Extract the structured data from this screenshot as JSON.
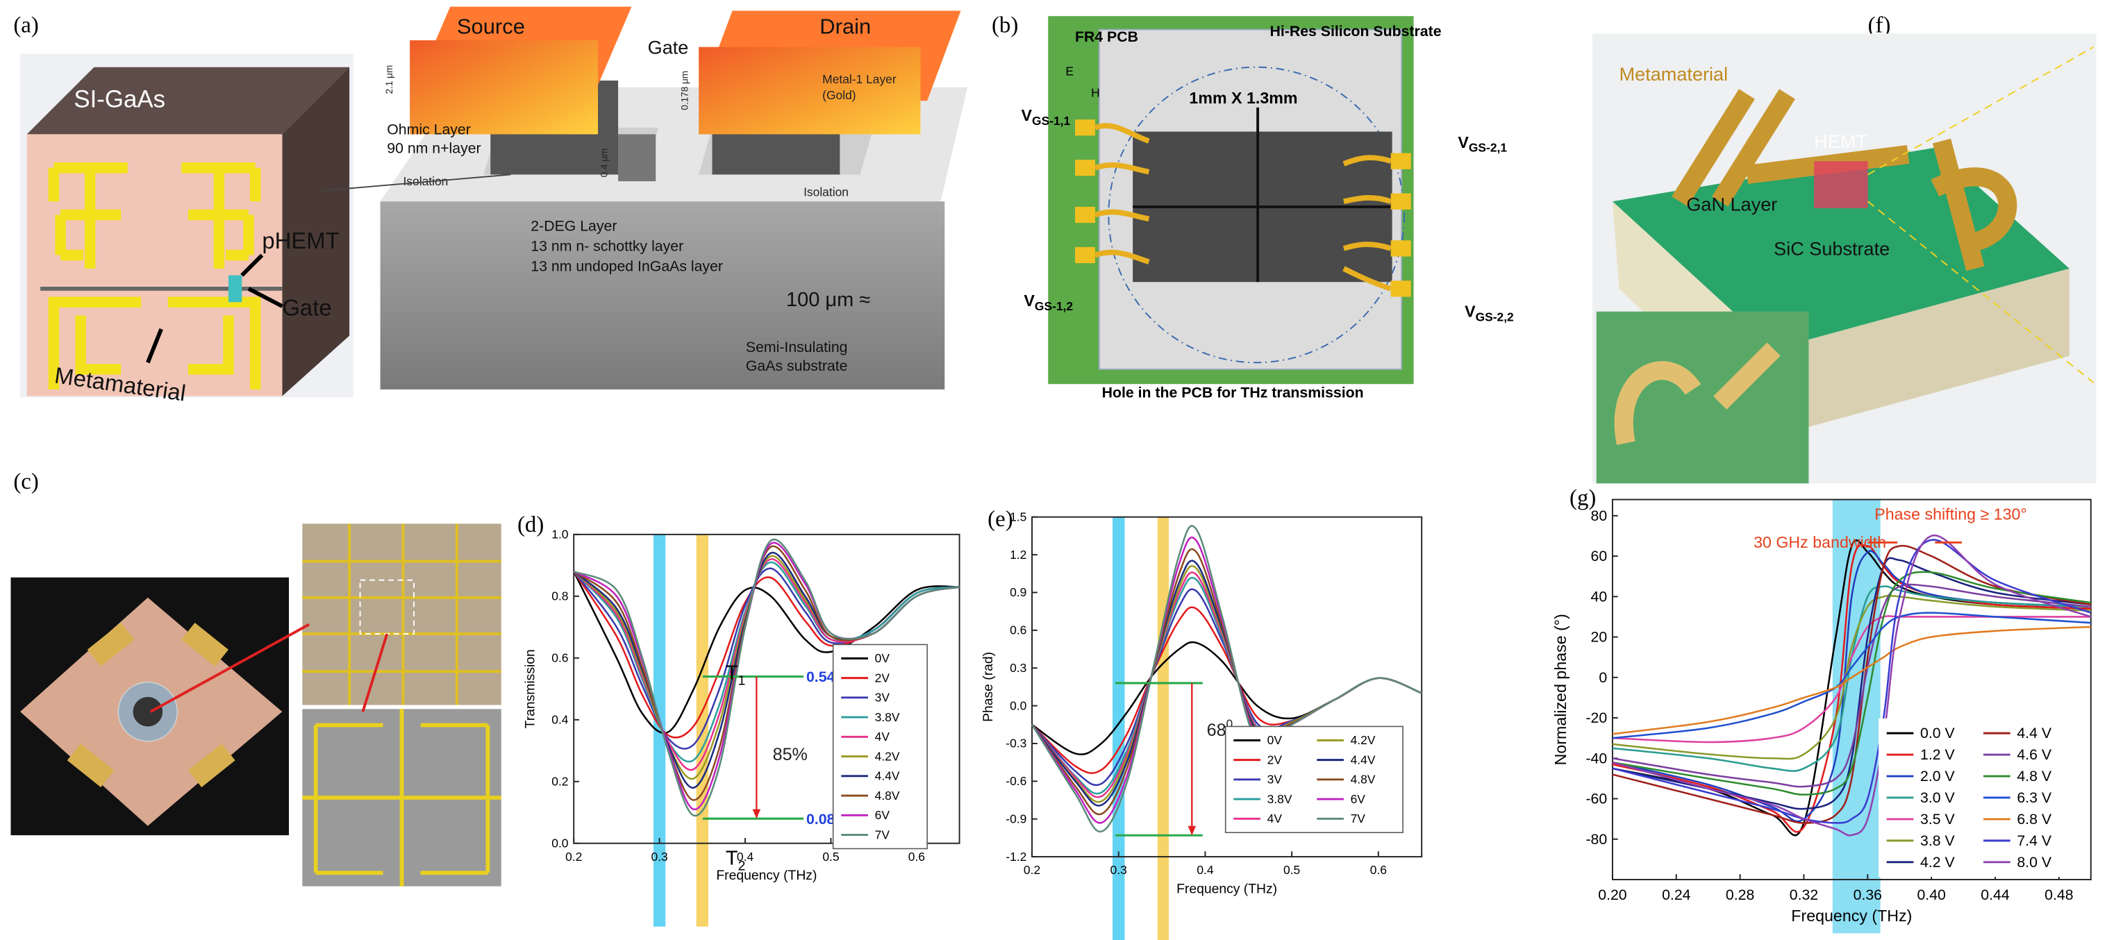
{
  "panels": {
    "a": {
      "label": "(a)",
      "chip": {
        "substrate": "SI-GaAs",
        "device": "pHEMT",
        "gate": "Gate",
        "metamaterial": "Metamaterial"
      },
      "cross_section": {
        "source": "Source",
        "drain": "Drain",
        "gate": "Gate",
        "metal_layer": [
          "Metal-1 Layer",
          "(Gold)"
        ],
        "ohmic_layer": [
          "Ohmic Layer",
          "90 nm n+layer"
        ],
        "isolation_left": "Isolation",
        "isolation_right": "Isolation",
        "layers": [
          "2-DEG Layer",
          "13 nm n- schottky layer",
          "13 nm undoped InGaAs layer"
        ],
        "thickness": "100 μm ≈",
        "substrate": [
          "Semi-Insulating",
          "GaAs substrate"
        ],
        "dims": [
          "2.1 μm",
          "0.178 μm",
          "0.4 μm"
        ]
      }
    },
    "b": {
      "label": "(b)",
      "pcb": "FR4 PCB",
      "substrate": "Hi-Res Silicon Substrate",
      "size": "1mm X 1.3mm",
      "e": "E",
      "h": "H",
      "hole": "Hole in the PCB for THz transmission",
      "bias": [
        {
          "v": "V",
          "sub": "GS-1,1"
        },
        {
          "v": "V",
          "sub": "GS-1,2"
        },
        {
          "v": "V",
          "sub": "GS-2,1"
        },
        {
          "v": "V",
          "sub": "GS-2,2"
        }
      ]
    },
    "c": {
      "label": "(c)"
    },
    "f": {
      "label": "(f)",
      "metamaterial": "Metamaterial",
      "hemt": "HEMT",
      "gan": "GaN Layer",
      "sic": "SiC Substrate"
    }
  },
  "chart_data": [
    {
      "type": "line",
      "panel_label": "(d)",
      "x_label": "Frequency (THz)",
      "y_label": "Transmission",
      "xlim": [
        0.2,
        0.65
      ],
      "xticks": [
        0.2,
        0.3,
        0.4,
        0.5,
        0.6
      ],
      "ylim": [
        0,
        1
      ],
      "yticks": [
        {
          "value": 0,
          "label": "0.0"
        },
        0.2,
        0.4,
        0.6,
        0.8,
        {
          "value": 1,
          "label": "1.0"
        }
      ],
      "legend": "lower right",
      "legend_columns": 1,
      "bands": [
        {
          "color": "#3cc8f0",
          "x": [
            0.293,
            0.307
          ]
        },
        {
          "color": "#f5c842",
          "x": [
            0.343,
            0.357
          ]
        }
      ],
      "reference_lines": [
        {
          "name": "T",
          "subscript": "1",
          "value": 0.54
        },
        {
          "name": "T",
          "subscript": "2",
          "value": 0.08
        }
      ],
      "annotations": [
        {
          "text": "85%"
        }
      ],
      "x": [
        0.2,
        0.25,
        0.28,
        0.31,
        0.34,
        0.37,
        0.4,
        0.43,
        0.47,
        0.5,
        0.55,
        0.6,
        0.65
      ],
      "series": [
        {
          "name": "0V",
          "color": "#000000",
          "values": [
            0.88,
            0.6,
            0.42,
            0.36,
            0.5,
            0.7,
            0.82,
            0.8,
            0.66,
            0.62,
            0.7,
            0.82,
            0.83
          ]
        },
        {
          "name": "2V",
          "color": "#e41a1c",
          "values": [
            0.88,
            0.67,
            0.48,
            0.35,
            0.38,
            0.56,
            0.78,
            0.86,
            0.72,
            0.64,
            0.69,
            0.81,
            0.83
          ]
        },
        {
          "name": "3V",
          "color": "#3a3ab0",
          "values": [
            0.88,
            0.7,
            0.51,
            0.34,
            0.32,
            0.5,
            0.77,
            0.89,
            0.75,
            0.65,
            0.69,
            0.81,
            0.83
          ]
        },
        {
          "name": "3.8V",
          "color": "#2a9d9d",
          "values": [
            0.88,
            0.73,
            0.53,
            0.33,
            0.27,
            0.45,
            0.75,
            0.91,
            0.77,
            0.66,
            0.69,
            0.81,
            0.83
          ]
        },
        {
          "name": "4V",
          "color": "#e8308a",
          "values": [
            0.88,
            0.74,
            0.54,
            0.33,
            0.24,
            0.42,
            0.74,
            0.92,
            0.78,
            0.66,
            0.68,
            0.8,
            0.83
          ]
        },
        {
          "name": "4.2V",
          "color": "#9a9a20",
          "values": [
            0.88,
            0.75,
            0.55,
            0.32,
            0.21,
            0.39,
            0.73,
            0.93,
            0.79,
            0.67,
            0.68,
            0.8,
            0.83
          ]
        },
        {
          "name": "4.4V",
          "color": "#1a2a80",
          "values": [
            0.88,
            0.76,
            0.56,
            0.32,
            0.18,
            0.36,
            0.72,
            0.94,
            0.8,
            0.67,
            0.68,
            0.8,
            0.83
          ]
        },
        {
          "name": "4.8V",
          "color": "#8a4a20",
          "values": [
            0.88,
            0.78,
            0.57,
            0.31,
            0.14,
            0.31,
            0.71,
            0.96,
            0.82,
            0.67,
            0.68,
            0.8,
            0.83
          ]
        },
        {
          "name": "6V",
          "color": "#c020c0",
          "values": [
            0.88,
            0.8,
            0.59,
            0.31,
            0.11,
            0.28,
            0.7,
            0.97,
            0.84,
            0.68,
            0.68,
            0.8,
            0.83
          ]
        },
        {
          "name": "7V",
          "color": "#5a8a7a",
          "values": [
            0.88,
            0.82,
            0.6,
            0.3,
            0.09,
            0.25,
            0.7,
            0.98,
            0.85,
            0.68,
            0.68,
            0.8,
            0.83
          ]
        }
      ]
    },
    {
      "type": "line",
      "panel_label": "(e)",
      "x_label": "Frequency (THz)",
      "y_label": "Phase (rad)",
      "xlim": [
        0.2,
        0.65
      ],
      "xticks": [
        0.2,
        0.3,
        0.4,
        0.5,
        0.6
      ],
      "ylim": [
        -1.2,
        1.5
      ],
      "yticks": [
        -1.2,
        -0.9,
        -0.6,
        -0.3,
        {
          "value": 0,
          "label": "0.0"
        },
        0.3,
        0.6,
        0.9,
        1.2,
        1.5
      ],
      "legend": "lower right",
      "legend_columns": 2,
      "bands": [
        {
          "color": "#3cc8f0",
          "x": [
            0.293,
            0.307
          ]
        },
        {
          "color": "#f5c842",
          "x": [
            0.345,
            0.358
          ]
        }
      ],
      "reference_lines": [
        {
          "value": 0.18
        },
        {
          "value": -1.03
        }
      ],
      "annotations": [
        {
          "text": "68",
          "superscript": "0"
        }
      ],
      "x": [
        0.2,
        0.25,
        0.28,
        0.31,
        0.34,
        0.37,
        0.39,
        0.42,
        0.46,
        0.5,
        0.55,
        0.6,
        0.65
      ],
      "series": [
        {
          "name": "0V",
          "color": "#000000",
          "values": [
            -0.15,
            -0.38,
            -0.3,
            -0.05,
            0.25,
            0.45,
            0.5,
            0.35,
            0.0,
            -0.1,
            0.05,
            0.22,
            0.1
          ]
        },
        {
          "name": "2V",
          "color": "#e41a1c",
          "values": [
            -0.15,
            -0.48,
            -0.51,
            -0.22,
            0.27,
            0.68,
            0.77,
            0.46,
            -0.09,
            -0.12,
            0.05,
            0.22,
            0.1
          ]
        },
        {
          "name": "3V",
          "color": "#3a3ab0",
          "values": [
            -0.15,
            -0.52,
            -0.62,
            -0.3,
            0.27,
            0.79,
            0.91,
            0.51,
            -0.14,
            -0.12,
            0.05,
            0.22,
            0.1
          ]
        },
        {
          "name": "3.8V",
          "color": "#2a9d9d",
          "values": [
            -0.15,
            -0.56,
            -0.69,
            -0.35,
            0.28,
            0.86,
            1.0,
            0.54,
            -0.17,
            -0.13,
            0.05,
            0.22,
            0.1
          ]
        },
        {
          "name": "4V",
          "color": "#e8308a",
          "values": [
            -0.15,
            -0.57,
            -0.72,
            -0.38,
            0.28,
            0.9,
            1.04,
            0.56,
            -0.18,
            -0.13,
            0.05,
            0.22,
            0.1
          ]
        },
        {
          "name": "4.2V",
          "color": "#9a9a20",
          "values": [
            -0.15,
            -0.59,
            -0.76,
            -0.41,
            0.28,
            0.94,
            1.09,
            0.58,
            -0.2,
            -0.13,
            0.05,
            0.22,
            0.1
          ]
        },
        {
          "name": "4.4V",
          "color": "#1a2a80",
          "values": [
            -0.15,
            -0.6,
            -0.79,
            -0.44,
            0.29,
            0.98,
            1.13,
            0.6,
            -0.21,
            -0.14,
            0.05,
            0.22,
            0.1
          ]
        },
        {
          "name": "4.8V",
          "color": "#8a4a20",
          "values": [
            -0.15,
            -0.64,
            -0.86,
            -0.49,
            0.29,
            1.05,
            1.22,
            0.63,
            -0.24,
            -0.14,
            0.05,
            0.22,
            0.1
          ]
        },
        {
          "name": "6V",
          "color": "#c020c0",
          "values": [
            -0.15,
            -0.67,
            -0.93,
            -0.55,
            0.3,
            1.13,
            1.31,
            0.67,
            -0.27,
            -0.15,
            0.05,
            0.22,
            0.1
          ]
        },
        {
          "name": "7V",
          "color": "#5a8a7a",
          "values": [
            -0.15,
            -0.7,
            -1.0,
            -0.6,
            0.3,
            1.2,
            1.4,
            0.7,
            -0.3,
            -0.15,
            0.05,
            0.22,
            0.1
          ]
        }
      ]
    },
    {
      "type": "line",
      "panel_label": "(g)",
      "x_label": "Frequency (THz)",
      "y_label": "Normalized phase (°)",
      "xlim": [
        0.2,
        0.5
      ],
      "xticks": [
        {
          "value": 0.2,
          "label": "0.20"
        },
        0.24,
        0.28,
        0.32,
        0.36,
        {
          "value": 0.4,
          "label": "0.40"
        },
        0.44,
        0.48
      ],
      "ylim": [
        -100,
        88
      ],
      "yticks": [
        -80,
        -60,
        -40,
        -20,
        0,
        20,
        40,
        60,
        80
      ],
      "legend": "lower right",
      "legend_columns": 2,
      "bands": [
        {
          "color": "#6fd6f0",
          "x": [
            0.338,
            0.368
          ]
        }
      ],
      "reference_lines": [],
      "annotations": [
        {
          "text": "Phase shifting ≥ 130°",
          "color": "#e8401c"
        },
        {
          "text": "30 GHz bandwidth",
          "color": "#e8401c"
        }
      ],
      "x": [
        0.2,
        0.26,
        0.3,
        0.32,
        0.34,
        0.35,
        0.36,
        0.37,
        0.38,
        0.4,
        0.44,
        0.5
      ],
      "series": [
        {
          "name": "0.0 V",
          "color": "#000000",
          "values": [
            -45,
            -55,
            -68,
            -72,
            20,
            65,
            62,
            52,
            45,
            40,
            36,
            34
          ]
        },
        {
          "name": "1.2 V",
          "color": "#e41a1c",
          "values": [
            -43,
            -54,
            -66,
            -74,
            -20,
            55,
            65,
            55,
            47,
            41,
            36,
            34
          ]
        },
        {
          "name": "2.0 V",
          "color": "#1f3fbf",
          "values": [
            -42,
            -53,
            -64,
            -70,
            -40,
            40,
            62,
            56,
            48,
            41,
            37,
            35
          ]
        },
        {
          "name": "3.0 V",
          "color": "#2a9d8f",
          "values": [
            -35,
            -40,
            -45,
            -45,
            -30,
            10,
            40,
            45,
            43,
            40,
            37,
            35
          ]
        },
        {
          "name": "3.5 V",
          "color": "#e040a0",
          "values": [
            -30,
            -32,
            -30,
            -25,
            -10,
            10,
            25,
            30,
            30,
            30,
            30,
            30
          ]
        },
        {
          "name": "3.8 V",
          "color": "#8a9a2a",
          "values": [
            -33,
            -38,
            -40,
            -38,
            -20,
            15,
            35,
            40,
            40,
            38,
            35,
            33
          ]
        },
        {
          "name": "4.2 V",
          "color": "#1a237e",
          "values": [
            -45,
            -55,
            -62,
            -65,
            -60,
            -40,
            20,
            55,
            58,
            52,
            42,
            36
          ]
        },
        {
          "name": "4.4 V",
          "color": "#a0201a",
          "values": [
            -48,
            -60,
            -68,
            -72,
            -68,
            -50,
            10,
            55,
            65,
            60,
            45,
            36
          ]
        },
        {
          "name": "4.6 V",
          "color": "#7b3fa0",
          "values": [
            -40,
            -48,
            -52,
            -54,
            -50,
            -35,
            5,
            35,
            45,
            45,
            40,
            35
          ]
        },
        {
          "name": "4.8 V",
          "color": "#2e8b2e",
          "values": [
            -42,
            -50,
            -55,
            -58,
            -55,
            -45,
            -10,
            30,
            48,
            52,
            44,
            37
          ]
        },
        {
          "name": "6.3 V",
          "color": "#1f4fd0",
          "values": [
            -30,
            -25,
            -18,
            -12,
            -5,
            5,
            15,
            25,
            30,
            32,
            30,
            27
          ]
        },
        {
          "name": "6.8 V",
          "color": "#e07b20",
          "values": [
            -28,
            -22,
            -15,
            -10,
            -5,
            0,
            5,
            10,
            15,
            20,
            23,
            25
          ]
        },
        {
          "name": "7.4 V",
          "color": "#3a3ad0",
          "values": [
            -45,
            -57,
            -65,
            -70,
            -72,
            -70,
            -60,
            -20,
            40,
            68,
            48,
            32
          ]
        },
        {
          "name": "8.0 V",
          "color": "#9040b0",
          "values": [
            -42,
            -55,
            -63,
            -70,
            -75,
            -78,
            -70,
            -30,
            30,
            70,
            46,
            30
          ]
        }
      ]
    }
  ]
}
